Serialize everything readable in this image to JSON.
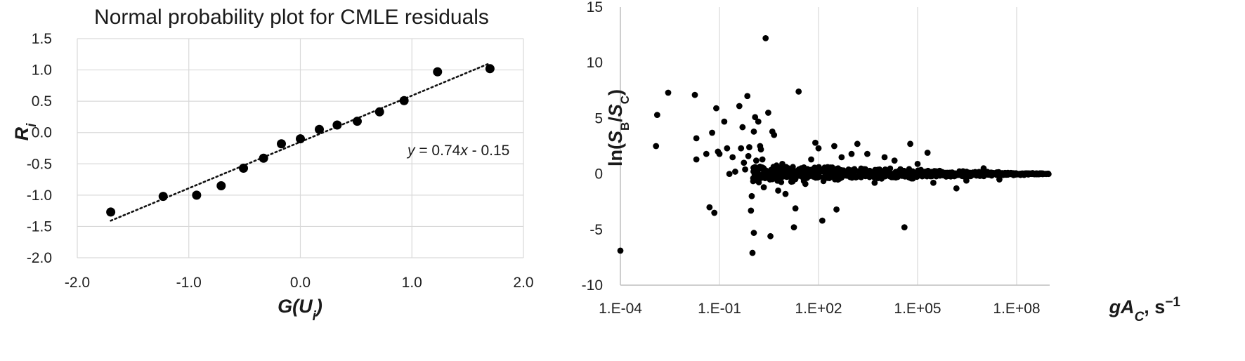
{
  "colors": {
    "marker": "#000000",
    "grid": "#d9d9d9",
    "axis": "#bfbfbf",
    "text": "#1a1a1a"
  },
  "chart_data": [
    {
      "type": "scatter",
      "title": "Normal probability plot for CMLE residuals",
      "xlabel_parts": [
        "G(U",
        "i",
        ")"
      ],
      "ylabel_parts": [
        "R",
        "i"
      ],
      "xlim": [
        -2.0,
        2.0
      ],
      "ylim": [
        -2.0,
        1.5
      ],
      "xticks": [
        "-2.0",
        "-1.0",
        "0.0",
        "1.0",
        "2.0"
      ],
      "yticks": [
        "1.5",
        "1.0",
        "0.5",
        "0.0",
        "-0.5",
        "-1.0",
        "-1.5",
        "-2.0"
      ],
      "grid": true,
      "trendline": {
        "type": "linear",
        "slope": 0.74,
        "intercept": -0.15,
        "x_range": [
          -1.7,
          1.7
        ],
        "style": "dotted"
      },
      "equation_parts": [
        "y",
        " = 0.74",
        "x",
        " - 0.15"
      ],
      "points": [
        {
          "x": -1.7,
          "y": -1.27
        },
        {
          "x": -1.23,
          "y": -1.02
        },
        {
          "x": -0.93,
          "y": -1.0
        },
        {
          "x": -0.71,
          "y": -0.85
        },
        {
          "x": -0.51,
          "y": -0.57
        },
        {
          "x": -0.33,
          "y": -0.41
        },
        {
          "x": -0.17,
          "y": -0.18
        },
        {
          "x": 0.0,
          "y": -0.1
        },
        {
          "x": 0.17,
          "y": 0.05
        },
        {
          "x": 0.33,
          "y": 0.12
        },
        {
          "x": 0.51,
          "y": 0.18
        },
        {
          "x": 0.71,
          "y": 0.33
        },
        {
          "x": 0.93,
          "y": 0.51
        },
        {
          "x": 1.23,
          "y": 0.97
        },
        {
          "x": 1.7,
          "y": 1.02
        }
      ]
    },
    {
      "type": "scatter",
      "title": "",
      "xscale": "log",
      "xlim": [
        0.0001,
        1000000000
      ],
      "ylim": [
        -10,
        15
      ],
      "xticks": [
        "1.E-04",
        "1.E-01",
        "1.E+02",
        "1.E+05",
        "1.E+08"
      ],
      "yticks": [
        "15",
        "10",
        "5",
        "0",
        "-5",
        "-10"
      ],
      "xlabel_parts": [
        "gA",
        "C",
        ", s",
        "−1"
      ],
      "ylabel_parts": [
        "ln(",
        "S",
        "B",
        "/",
        "S",
        "C",
        ")"
      ],
      "grid": "vertical",
      "points": [
        {
          "x": 0.0001,
          "y": -6.9
        },
        {
          "x": 0.0012,
          "y": 2.5
        },
        {
          "x": 0.0013,
          "y": 5.3
        },
        {
          "x": 0.0028,
          "y": 7.3
        },
        {
          "x": 0.018,
          "y": 7.1
        },
        {
          "x": 0.02,
          "y": 3.2
        },
        {
          "x": 0.02,
          "y": 1.3
        },
        {
          "x": 0.04,
          "y": 1.8
        },
        {
          "x": 0.06,
          "y": 3.7
        },
        {
          "x": 0.05,
          "y": -3.0
        },
        {
          "x": 0.07,
          "y": -3.5
        },
        {
          "x": 0.08,
          "y": 5.9
        },
        {
          "x": 0.09,
          "y": 2.0
        },
        {
          "x": 0.1,
          "y": 1.8
        },
        {
          "x": 0.14,
          "y": 4.7
        },
        {
          "x": 0.17,
          "y": 2.3
        },
        {
          "x": 0.2,
          "y": 0.0
        },
        {
          "x": 0.25,
          "y": 1.5
        },
        {
          "x": 0.3,
          "y": 0.2
        },
        {
          "x": 0.4,
          "y": 6.1
        },
        {
          "x": 0.45,
          "y": 2.3
        },
        {
          "x": 0.5,
          "y": 4.2
        },
        {
          "x": 0.55,
          "y": 1.0
        },
        {
          "x": 0.6,
          "y": 0.4
        },
        {
          "x": 0.7,
          "y": 7.0
        },
        {
          "x": 0.75,
          "y": 1.6
        },
        {
          "x": 0.8,
          "y": 2.4
        },
        {
          "x": 0.9,
          "y": -3.3
        },
        {
          "x": 0.95,
          "y": -2.0
        },
        {
          "x": 1.0,
          "y": -7.1
        },
        {
          "x": 1.1,
          "y": -5.3
        },
        {
          "x": 1.1,
          "y": 3.8
        },
        {
          "x": 1.2,
          "y": 5.1
        },
        {
          "x": 1.3,
          "y": 1.2
        },
        {
          "x": 1.4,
          "y": -0.6
        },
        {
          "x": 1.5,
          "y": 4.7
        },
        {
          "x": 1.7,
          "y": 2.5
        },
        {
          "x": 1.8,
          "y": 2.2
        },
        {
          "x": 2.0,
          "y": 1.3
        },
        {
          "x": 2.2,
          "y": -1.2
        },
        {
          "x": 2.5,
          "y": 12.2
        },
        {
          "x": 3.0,
          "y": 5.5
        },
        {
          "x": 3.5,
          "y": -5.6
        },
        {
          "x": 4.0,
          "y": 3.8
        },
        {
          "x": 4.5,
          "y": 3.5
        },
        {
          "x": 5.0,
          "y": -0.3
        },
        {
          "x": 6.0,
          "y": -1.5
        },
        {
          "x": 8.0,
          "y": 0.9
        },
        {
          "x": 10,
          "y": -1.8
        },
        {
          "x": 13,
          "y": 0.3
        },
        {
          "x": 15,
          "y": -0.7
        },
        {
          "x": 18,
          "y": -4.8
        },
        {
          "x": 20,
          "y": -3.1
        },
        {
          "x": 25,
          "y": 7.4
        },
        {
          "x": 30,
          "y": 0.5
        },
        {
          "x": 40,
          "y": -0.9
        },
        {
          "x": 60,
          "y": 1.3
        },
        {
          "x": 80,
          "y": 2.8
        },
        {
          "x": 100,
          "y": 2.3
        },
        {
          "x": 130,
          "y": -4.2
        },
        {
          "x": 150,
          "y": -0.4
        },
        {
          "x": 300,
          "y": 2.5
        },
        {
          "x": 350,
          "y": -3.2
        },
        {
          "x": 500,
          "y": 1.5
        },
        {
          "x": 1000,
          "y": 1.8
        },
        {
          "x": 1500,
          "y": 2.7
        },
        {
          "x": 3000,
          "y": 1.8
        },
        {
          "x": 5000,
          "y": -0.8
        },
        {
          "x": 10000,
          "y": 1.5
        },
        {
          "x": 20000,
          "y": 1.2
        },
        {
          "x": 40000,
          "y": -4.8
        },
        {
          "x": 60000,
          "y": 2.7
        },
        {
          "x": 100000,
          "y": 0.9
        },
        {
          "x": 200000,
          "y": 1.9
        },
        {
          "x": 300000,
          "y": -0.8
        },
        {
          "x": 1500000,
          "y": -1.3
        },
        {
          "x": 3000000,
          "y": -0.6
        },
        {
          "x": 10000000,
          "y": 0.5
        },
        {
          "x": 30000000,
          "y": -0.5
        }
      ],
      "band": {
        "description": "dense cluster of points near y = 0 narrowing with increasing x",
        "x_start": 1,
        "x_end": 1000000000,
        "spread_start": 0.9,
        "spread_end": 0.05
      }
    }
  ]
}
